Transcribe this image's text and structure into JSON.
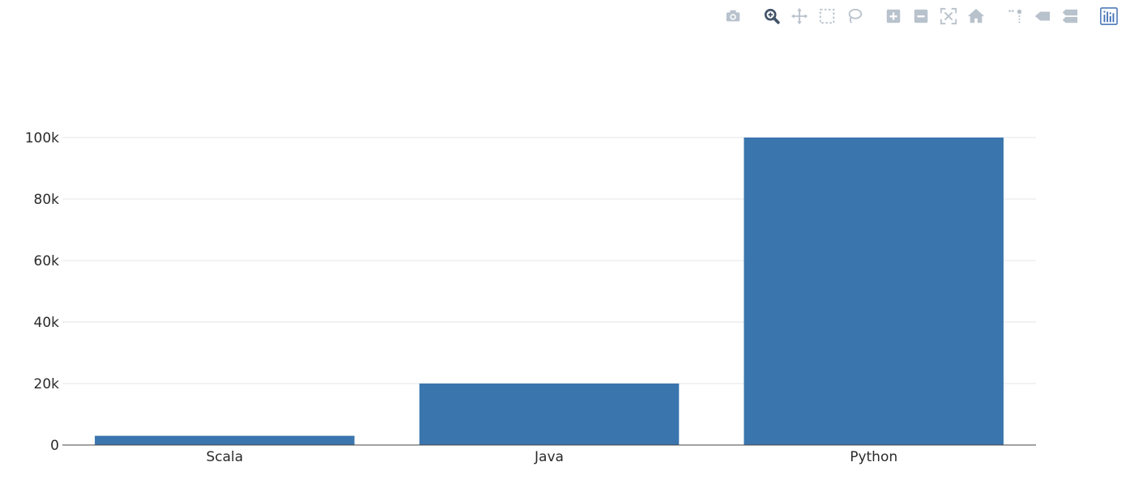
{
  "toolbar": {
    "groups": [
      [
        "camera-icon"
      ],
      [
        "zoom-icon",
        "pan-icon",
        "box-select-icon",
        "lasso-select-icon"
      ],
      [
        "zoom-in-icon",
        "zoom-out-icon",
        "autoscale-icon",
        "reset-axes-icon"
      ],
      [
        "spike-lines-icon",
        "hover-closest-icon",
        "hover-compare-icon"
      ],
      [
        "plotly-logo-icon"
      ]
    ],
    "active": "zoom-icon",
    "icon_color": "#b8c2cc",
    "active_color": "#44546a",
    "logo_color": "#3f6fb5"
  },
  "chart_data": {
    "type": "bar",
    "categories": [
      "Scala",
      "Java",
      "Python"
    ],
    "values": [
      3000,
      20000,
      100000
    ],
    "title": "",
    "xlabel": "",
    "ylabel": "",
    "ylim": [
      0,
      100000
    ],
    "yticks": [
      0,
      20000,
      40000,
      60000,
      80000,
      100000
    ],
    "ytick_labels": [
      "0",
      "20k",
      "40k",
      "60k",
      "80k",
      "100k"
    ],
    "bar_color": "#3a75ae",
    "grid": true
  }
}
